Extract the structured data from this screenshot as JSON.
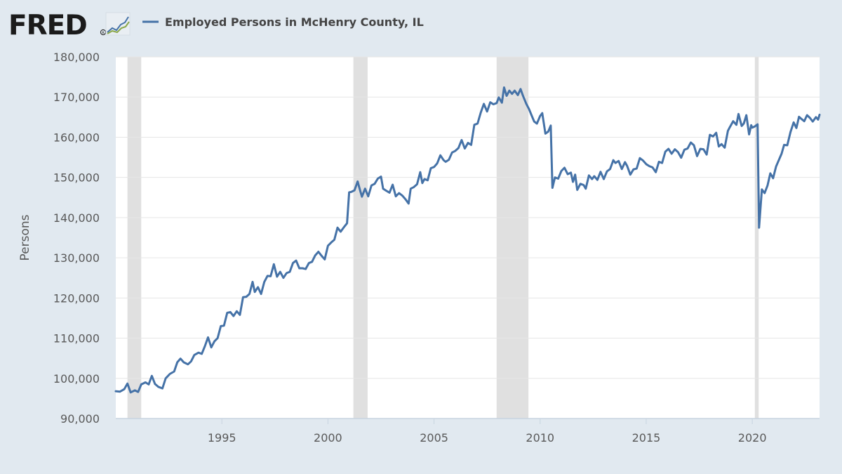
{
  "brand": {
    "logo_text": "FRED",
    "logo_mark": "R",
    "logo_icon": "line-chart-icon"
  },
  "colors": {
    "background": "#e1e9f0",
    "plot": "#ffffff",
    "series": "#4572a7",
    "recession": "#e0e0e0",
    "grid": "#e6e6e6"
  },
  "chart_data": {
    "type": "line",
    "title": "",
    "xlabel": "",
    "ylabel": "Persons",
    "xlim": [
      1990.0,
      2023.17
    ],
    "ylim": [
      90000,
      180000
    ],
    "y_ticks": [
      90000,
      100000,
      110000,
      120000,
      130000,
      140000,
      150000,
      160000,
      170000,
      180000
    ],
    "y_tick_labels": [
      "90,000",
      "100,000",
      "110,000",
      "120,000",
      "130,000",
      "140,000",
      "150,000",
      "160,000",
      "170,000",
      "180,000"
    ],
    "x_ticks": [
      1995,
      2000,
      2005,
      2010,
      2015,
      2020
    ],
    "x_tick_labels": [
      "1995",
      "2000",
      "2005",
      "2010",
      "2015",
      "2020"
    ],
    "grid": true,
    "legend_position": "top-left",
    "recessions": [
      [
        1990.55,
        1991.2
      ],
      [
        2001.2,
        2001.87
      ],
      [
        2007.95,
        2009.45
      ],
      [
        2020.12,
        2020.3
      ]
    ],
    "series": [
      {
        "name": "Employed Persons in McHenry County, IL",
        "points": [
          [
            1990.0,
            96800
          ],
          [
            1990.2,
            96700
          ],
          [
            1990.4,
            97300
          ],
          [
            1990.55,
            98700
          ],
          [
            1990.7,
            96500
          ],
          [
            1990.9,
            97000
          ],
          [
            1991.05,
            96600
          ],
          [
            1991.2,
            98500
          ],
          [
            1991.4,
            99000
          ],
          [
            1991.55,
            98500
          ],
          [
            1991.7,
            100600
          ],
          [
            1991.85,
            98600
          ],
          [
            1992.0,
            97900
          ],
          [
            1992.2,
            97500
          ],
          [
            1992.35,
            100000
          ],
          [
            1992.55,
            101100
          ],
          [
            1992.75,
            101700
          ],
          [
            1992.9,
            104000
          ],
          [
            1993.05,
            104900
          ],
          [
            1993.2,
            104000
          ],
          [
            1993.4,
            103500
          ],
          [
            1993.55,
            104200
          ],
          [
            1993.7,
            105800
          ],
          [
            1993.9,
            106400
          ],
          [
            1994.05,
            106100
          ],
          [
            1994.2,
            108000
          ],
          [
            1994.35,
            110200
          ],
          [
            1994.5,
            107700
          ],
          [
            1994.65,
            109200
          ],
          [
            1994.8,
            110000
          ],
          [
            1994.95,
            113000
          ],
          [
            1995.1,
            113100
          ],
          [
            1995.25,
            116300
          ],
          [
            1995.4,
            116500
          ],
          [
            1995.55,
            115500
          ],
          [
            1995.7,
            116700
          ],
          [
            1995.85,
            115800
          ],
          [
            1996.0,
            120200
          ],
          [
            1996.15,
            120300
          ],
          [
            1996.3,
            121000
          ],
          [
            1996.45,
            124000
          ],
          [
            1996.55,
            121500
          ],
          [
            1996.7,
            122700
          ],
          [
            1996.85,
            121000
          ],
          [
            1997.0,
            124000
          ],
          [
            1997.15,
            125500
          ],
          [
            1997.3,
            125400
          ],
          [
            1997.45,
            128400
          ],
          [
            1997.6,
            125300
          ],
          [
            1997.75,
            126500
          ],
          [
            1997.9,
            125000
          ],
          [
            1998.05,
            126200
          ],
          [
            1998.2,
            126500
          ],
          [
            1998.35,
            128700
          ],
          [
            1998.5,
            129300
          ],
          [
            1998.65,
            127400
          ],
          [
            1998.8,
            127400
          ],
          [
            1998.95,
            127200
          ],
          [
            1999.1,
            128700
          ],
          [
            1999.25,
            129000
          ],
          [
            1999.4,
            130600
          ],
          [
            1999.55,
            131500
          ],
          [
            1999.7,
            130500
          ],
          [
            1999.85,
            129600
          ],
          [
            2000.0,
            133000
          ],
          [
            2000.15,
            133800
          ],
          [
            2000.3,
            134500
          ],
          [
            2000.45,
            137500
          ],
          [
            2000.6,
            136500
          ],
          [
            2000.75,
            137600
          ],
          [
            2000.9,
            138600
          ],
          [
            2001.0,
            146300
          ],
          [
            2001.1,
            146400
          ],
          [
            2001.25,
            146800
          ],
          [
            2001.4,
            149000
          ],
          [
            2001.5,
            147100
          ],
          [
            2001.6,
            145200
          ],
          [
            2001.75,
            147200
          ],
          [
            2001.9,
            145300
          ],
          [
            2002.05,
            148000
          ],
          [
            2002.2,
            148400
          ],
          [
            2002.35,
            149700
          ],
          [
            2002.5,
            150200
          ],
          [
            2002.6,
            147200
          ],
          [
            2002.75,
            146700
          ],
          [
            2002.9,
            146200
          ],
          [
            2003.05,
            148200
          ],
          [
            2003.2,
            145300
          ],
          [
            2003.35,
            146100
          ],
          [
            2003.5,
            145500
          ],
          [
            2003.65,
            144600
          ],
          [
            2003.8,
            143500
          ],
          [
            2003.9,
            147200
          ],
          [
            2004.05,
            147600
          ],
          [
            2004.2,
            148300
          ],
          [
            2004.35,
            151300
          ],
          [
            2004.45,
            148600
          ],
          [
            2004.55,
            149600
          ],
          [
            2004.7,
            149300
          ],
          [
            2004.85,
            152300
          ],
          [
            2005.0,
            152600
          ],
          [
            2005.15,
            153500
          ],
          [
            2005.3,
            155500
          ],
          [
            2005.45,
            154300
          ],
          [
            2005.55,
            153900
          ],
          [
            2005.7,
            154400
          ],
          [
            2005.85,
            156200
          ],
          [
            2006.0,
            156600
          ],
          [
            2006.15,
            157300
          ],
          [
            2006.3,
            159300
          ],
          [
            2006.45,
            157200
          ],
          [
            2006.6,
            158600
          ],
          [
            2006.75,
            158100
          ],
          [
            2006.9,
            163100
          ],
          [
            2007.05,
            163400
          ],
          [
            2007.2,
            166100
          ],
          [
            2007.35,
            168300
          ],
          [
            2007.5,
            166400
          ],
          [
            2007.65,
            168700
          ],
          [
            2007.8,
            168200
          ],
          [
            2007.95,
            168500
          ],
          [
            2008.05,
            169900
          ],
          [
            2008.2,
            168600
          ],
          [
            2008.3,
            172400
          ],
          [
            2008.42,
            170300
          ],
          [
            2008.55,
            171600
          ],
          [
            2008.68,
            170800
          ],
          [
            2008.8,
            171600
          ],
          [
            2008.95,
            170500
          ],
          [
            2009.08,
            172000
          ],
          [
            2009.2,
            170200
          ],
          [
            2009.35,
            168300
          ],
          [
            2009.48,
            167000
          ],
          [
            2009.6,
            165400
          ],
          [
            2009.72,
            163900
          ],
          [
            2009.85,
            163400
          ],
          [
            2010.0,
            165300
          ],
          [
            2010.1,
            166000
          ],
          [
            2010.25,
            160900
          ],
          [
            2010.38,
            161400
          ],
          [
            2010.5,
            162900
          ],
          [
            2010.58,
            147400
          ],
          [
            2010.7,
            150000
          ],
          [
            2010.85,
            149700
          ],
          [
            2011.0,
            151600
          ],
          [
            2011.15,
            152400
          ],
          [
            2011.3,
            150800
          ],
          [
            2011.45,
            151200
          ],
          [
            2011.55,
            148900
          ],
          [
            2011.65,
            150700
          ],
          [
            2011.75,
            146900
          ],
          [
            2011.9,
            148400
          ],
          [
            2012.05,
            148100
          ],
          [
            2012.15,
            147200
          ],
          [
            2012.3,
            150500
          ],
          [
            2012.45,
            149600
          ],
          [
            2012.55,
            150300
          ],
          [
            2012.7,
            149400
          ],
          [
            2012.85,
            151400
          ],
          [
            2013.0,
            149600
          ],
          [
            2013.15,
            151500
          ],
          [
            2013.3,
            152100
          ],
          [
            2013.45,
            154300
          ],
          [
            2013.55,
            153600
          ],
          [
            2013.7,
            154100
          ],
          [
            2013.85,
            152100
          ],
          [
            2014.0,
            153800
          ],
          [
            2014.1,
            152900
          ],
          [
            2014.25,
            150700
          ],
          [
            2014.4,
            152000
          ],
          [
            2014.55,
            152200
          ],
          [
            2014.7,
            154800
          ],
          [
            2014.85,
            154200
          ],
          [
            2015.0,
            153300
          ],
          [
            2015.15,
            152800
          ],
          [
            2015.3,
            152500
          ],
          [
            2015.45,
            151300
          ],
          [
            2015.6,
            153900
          ],
          [
            2015.75,
            153600
          ],
          [
            2015.9,
            156400
          ],
          [
            2016.05,
            157100
          ],
          [
            2016.2,
            155900
          ],
          [
            2016.35,
            157000
          ],
          [
            2016.5,
            156300
          ],
          [
            2016.65,
            154900
          ],
          [
            2016.8,
            156900
          ],
          [
            2016.95,
            157200
          ],
          [
            2017.1,
            158700
          ],
          [
            2017.25,
            158000
          ],
          [
            2017.4,
            155300
          ],
          [
            2017.55,
            157100
          ],
          [
            2017.7,
            157000
          ],
          [
            2017.85,
            155700
          ],
          [
            2018.0,
            160600
          ],
          [
            2018.15,
            160200
          ],
          [
            2018.3,
            161100
          ],
          [
            2018.42,
            157700
          ],
          [
            2018.55,
            158300
          ],
          [
            2018.7,
            157400
          ],
          [
            2018.85,
            161600
          ],
          [
            2018.95,
            162600
          ],
          [
            2019.1,
            164000
          ],
          [
            2019.25,
            163100
          ],
          [
            2019.35,
            165800
          ],
          [
            2019.5,
            162800
          ],
          [
            2019.6,
            163400
          ],
          [
            2019.72,
            165500
          ],
          [
            2019.85,
            160700
          ],
          [
            2019.95,
            163000
          ],
          [
            2020.0,
            162400
          ],
          [
            2020.12,
            162700
          ],
          [
            2020.25,
            163200
          ],
          [
            2020.32,
            137500
          ],
          [
            2020.45,
            147000
          ],
          [
            2020.58,
            146100
          ],
          [
            2020.72,
            148000
          ],
          [
            2020.85,
            151000
          ],
          [
            2020.98,
            149800
          ],
          [
            2021.12,
            152700
          ],
          [
            2021.25,
            154300
          ],
          [
            2021.38,
            155900
          ],
          [
            2021.5,
            158100
          ],
          [
            2021.65,
            158000
          ],
          [
            2021.8,
            161300
          ],
          [
            2021.95,
            163700
          ],
          [
            2022.08,
            162300
          ],
          [
            2022.2,
            165100
          ],
          [
            2022.33,
            164500
          ],
          [
            2022.45,
            164000
          ],
          [
            2022.58,
            165500
          ],
          [
            2022.72,
            164800
          ],
          [
            2022.85,
            163900
          ],
          [
            2023.0,
            165000
          ],
          [
            2023.1,
            164400
          ],
          [
            2023.17,
            165600
          ]
        ]
      }
    ]
  }
}
